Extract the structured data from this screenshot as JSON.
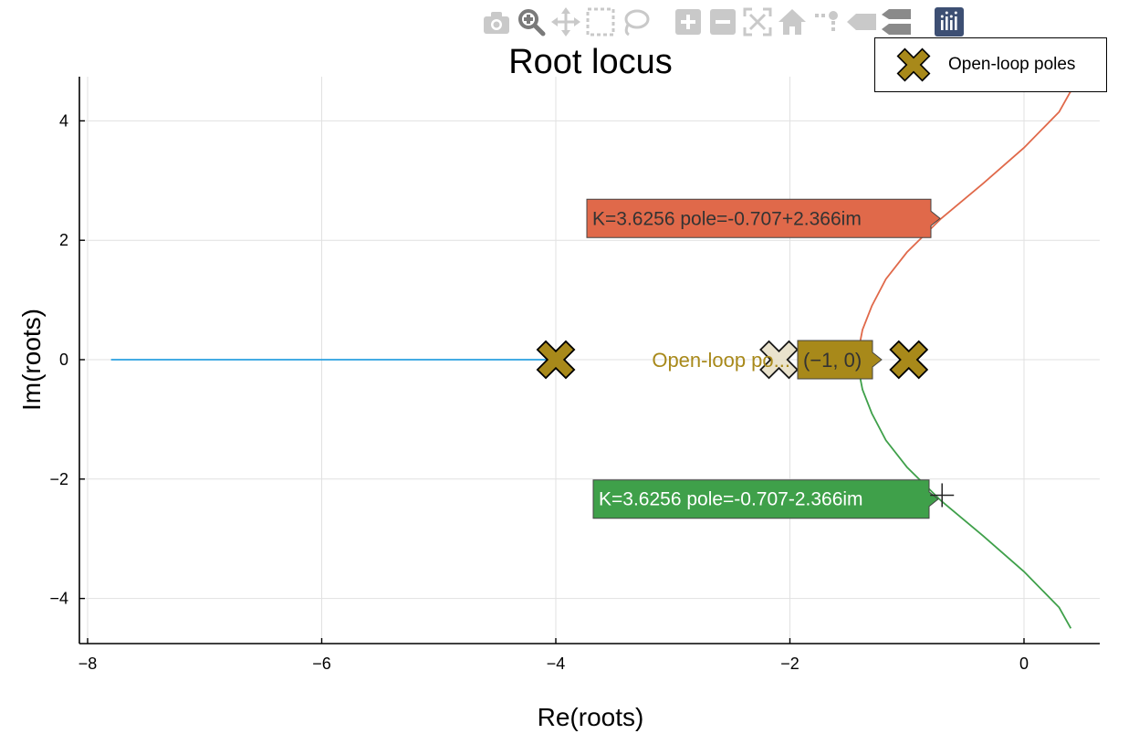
{
  "toolbar": {
    "buttons": [
      {
        "icon": "camera-icon"
      },
      {
        "icon": "zoom-icon"
      },
      {
        "icon": "pan-icon"
      },
      {
        "icon": "box-select-icon"
      },
      {
        "icon": "lasso-select-icon"
      },
      {
        "icon": "zoom-in-icon"
      },
      {
        "icon": "zoom-out-icon"
      },
      {
        "icon": "autoscale-icon"
      },
      {
        "icon": "reset-axes-icon"
      },
      {
        "icon": "spike-lines-icon"
      },
      {
        "icon": "hover-closest-icon"
      },
      {
        "icon": "hover-compare-icon"
      },
      {
        "icon": "plotly-logo-icon"
      }
    ]
  },
  "chart_data": {
    "type": "line",
    "title": "Root locus",
    "xlabel": "Re(roots)",
    "ylabel": "Im(roots)",
    "xlim": [
      -8,
      0.5
    ],
    "ylim": [
      -4.7,
      4.7
    ],
    "xticks": [
      -8,
      -6,
      -4,
      -2,
      0
    ],
    "xtick_labels": [
      "−8",
      "−6",
      "−4",
      "−2",
      "0"
    ],
    "yticks": [
      -4,
      -2,
      0,
      2,
      4
    ],
    "ytick_labels": [
      "−4",
      "−2",
      "0",
      "2",
      "4"
    ],
    "grid": true,
    "legend_position": "top-right",
    "colors": {
      "branch_real": "#2aa0e0",
      "branch_upper": "#e0694a",
      "branch_lower": "#3fa04a",
      "poles": "#a8891a"
    },
    "series": [
      {
        "name": "",
        "color": "#2aa0e0",
        "x": [
          -7.8,
          -4.0
        ],
        "y": [
          0,
          0
        ]
      },
      {
        "name": "",
        "color": "#e0694a",
        "x": [
          -1.42,
          -1.41,
          -1.38,
          -1.3,
          -1.18,
          -1.0,
          -0.707,
          -0.35,
          0.0,
          0.3,
          0.4
        ],
        "y": [
          0.0,
          0.2,
          0.5,
          0.9,
          1.35,
          1.8,
          2.366,
          2.95,
          3.55,
          4.15,
          4.5
        ]
      },
      {
        "name": "",
        "color": "#3fa04a",
        "x": [
          -1.42,
          -1.41,
          -1.38,
          -1.3,
          -1.18,
          -1.0,
          -0.707,
          -0.35,
          0.0,
          0.3,
          0.4
        ],
        "y": [
          0.0,
          -0.2,
          -0.5,
          -0.9,
          -1.35,
          -1.8,
          -2.366,
          -2.95,
          -3.55,
          -4.15,
          -4.5
        ]
      },
      {
        "name": "Open-loop poles",
        "color": "#a8891a",
        "marker": "x",
        "x": [
          -4,
          -2,
          -1
        ],
        "y": [
          0,
          0,
          0
        ]
      }
    ],
    "hover_labels": [
      {
        "text": "K=3.6256  pole=-0.707+2.366im",
        "x": -0.707,
        "y": 2.366,
        "bg": "#e0694a",
        "fg": "#333333"
      },
      {
        "text": "K=3.6256  pole=-0.707-2.366im",
        "x": -0.707,
        "y": -2.366,
        "bg": "#3fa04a",
        "fg": "#ffffff"
      },
      {
        "text": "(−1, 0)",
        "x": -2,
        "y": 0,
        "bg": "#a8891a",
        "fg": "#333333"
      },
      {
        "text": "Open-loop po...",
        "x": -2,
        "y": 0
      }
    ],
    "cursor": {
      "x": -0.7,
      "y": -2.27
    }
  }
}
